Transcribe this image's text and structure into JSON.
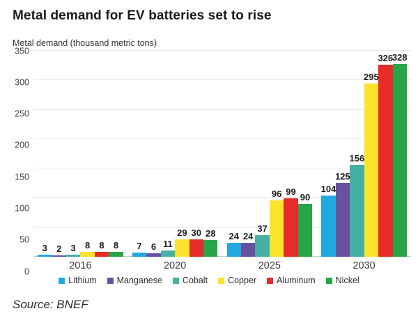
{
  "title": "Metal demand for EV batteries set to rise",
  "source": "Source: BNEF",
  "chart_data": {
    "type": "bar",
    "title": "Metal demand for EV batteries set to rise",
    "ylabel": "Metal demand (thousand metric tons)",
    "xlabel": "",
    "categories": [
      "2016",
      "2020",
      "2025",
      "2030"
    ],
    "series": [
      {
        "name": "Lithium",
        "color": "#21a8df",
        "values": [
          3,
          7,
          24,
          104
        ]
      },
      {
        "name": "Manganese",
        "color": "#6951a1",
        "values": [
          2,
          6,
          24,
          125
        ]
      },
      {
        "name": "Cobalt",
        "color": "#44b1a4",
        "values": [
          3,
          11,
          37,
          156
        ]
      },
      {
        "name": "Copper",
        "color": "#fce32c",
        "values": [
          8,
          29,
          96,
          295
        ]
      },
      {
        "name": "Aluminum",
        "color": "#e62b29",
        "values": [
          8,
          30,
          99,
          326
        ]
      },
      {
        "name": "Nickel",
        "color": "#27a648",
        "values": [
          8,
          28,
          90,
          328
        ]
      }
    ],
    "ylim": [
      0,
      350
    ],
    "yticks": [
      0,
      50,
      100,
      150,
      200,
      250,
      300,
      350
    ],
    "grid": true,
    "legend_position": "bottom",
    "bar_labels": true
  }
}
